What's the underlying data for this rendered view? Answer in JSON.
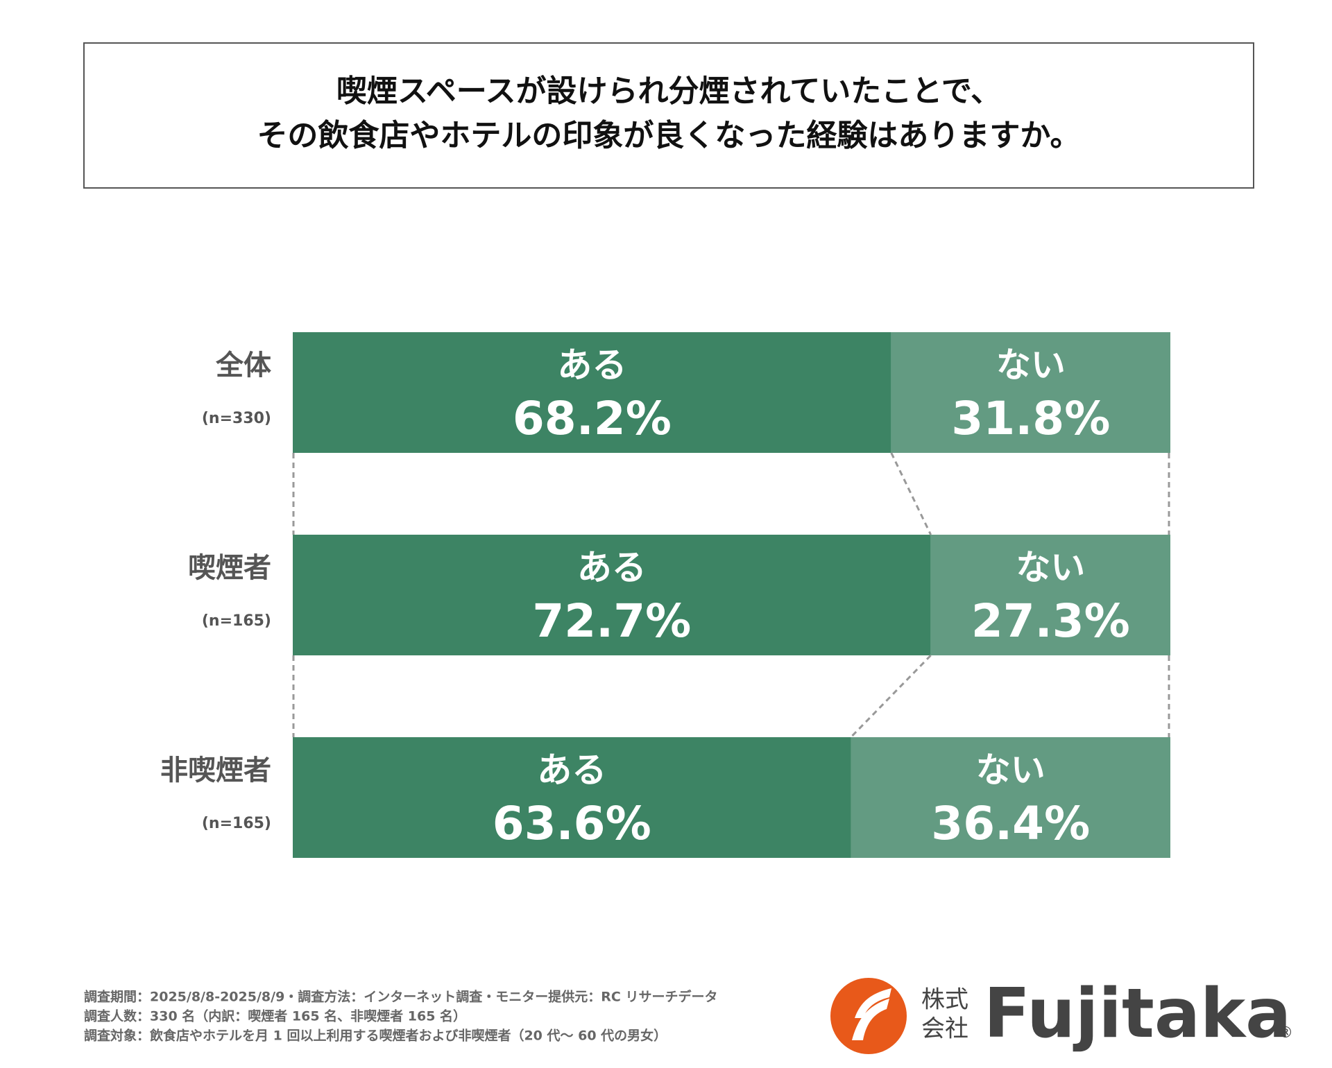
{
  "chart_data": {
    "type": "bar",
    "orientation": "horizontal",
    "stacked": true,
    "title": "喫煙スペースが設けられ分煙されていたことで、\nその飲食店やホテルの印象が良くなった経験はありますか。",
    "categories": [
      "全体",
      "喫煙者",
      "非喫煙者"
    ],
    "sublabels": [
      "(n=330)",
      "(n=165)",
      "(n=165)"
    ],
    "xlim": [
      0,
      100
    ],
    "series": [
      {
        "name": "ある",
        "color": "#3d8464",
        "values": [
          68.2,
          72.7,
          63.6
        ],
        "value_labels": [
          "68.2%",
          "72.7%",
          "63.6%"
        ]
      },
      {
        "name": "ない",
        "color": "#639b82",
        "values": [
          31.8,
          27.3,
          36.4
        ],
        "value_labels": [
          "31.8%",
          "27.3%",
          "36.4%"
        ]
      }
    ],
    "notes": [
      "調査期間：2025/8/8-2025/8/9・調査方法：インターネット調査・モニター提供元：RC リサーチデータ",
      "調査人数：330 名（内訳：喫煙者 165 名、非喫煙者 165 名）",
      "調査対象：飲食店やホテルを月 1 回以上利用する喫煙者および非喫煙者（20 代〜 60 代の男女）"
    ]
  },
  "brand": {
    "line1": "株式",
    "line2": "会社",
    "name": "Fujitaka",
    "mark": "®"
  }
}
